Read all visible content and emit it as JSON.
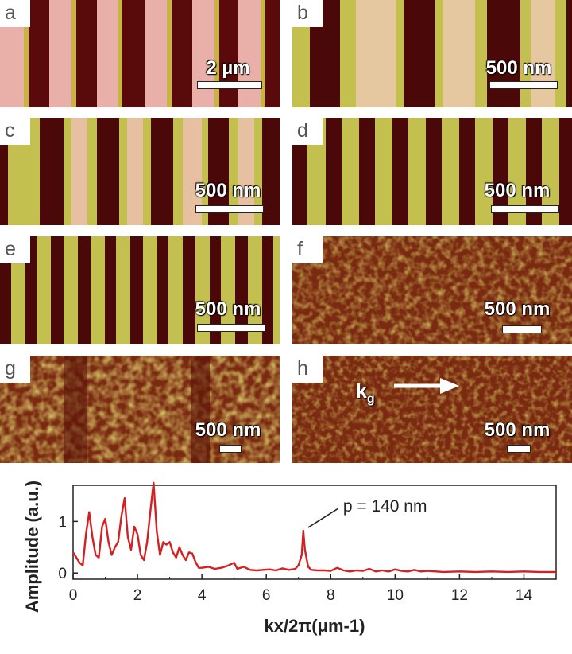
{
  "panels": [
    {
      "label": "a",
      "scale": "2 µm"
    },
    {
      "label": "b",
      "scale": "500 nm"
    },
    {
      "label": "c",
      "scale": "500 nm"
    },
    {
      "label": "d",
      "scale": "500 nm"
    },
    {
      "label": "e",
      "scale": "500 nm"
    },
    {
      "label": "f",
      "scale": "500 nm"
    },
    {
      "label": "g",
      "scale": "500 nm"
    },
    {
      "label": "h",
      "scale": "500 nm"
    }
  ],
  "arrow": {
    "label": "k",
    "sub": "g"
  },
  "chart_data": {
    "type": "line",
    "xlabel": "kx/2π(μm-1)",
    "ylabel": "Amplitude (a.u.)",
    "xlim": [
      0,
      15
    ],
    "ylim": [
      -0.12,
      1.7
    ],
    "xticks": [
      0,
      2,
      4,
      6,
      8,
      10,
      12,
      14
    ],
    "yticks": [
      0,
      1
    ],
    "annotation": {
      "text": "p = 140 nm",
      "x": 7.15,
      "y": 0.82
    },
    "series": [
      {
        "color": "#d42020",
        "x": [
          0,
          0.1,
          0.2,
          0.3,
          0.4,
          0.5,
          0.6,
          0.7,
          0.8,
          0.9,
          1.0,
          1.1,
          1.2,
          1.3,
          1.4,
          1.5,
          1.6,
          1.7,
          1.8,
          1.9,
          2.0,
          2.1,
          2.2,
          2.3,
          2.4,
          2.5,
          2.6,
          2.7,
          2.8,
          2.9,
          3.0,
          3.1,
          3.2,
          3.3,
          3.4,
          3.5,
          3.6,
          3.7,
          3.8,
          3.9,
          4.0,
          4.2,
          4.4,
          4.6,
          4.8,
          5.0,
          5.1,
          5.3,
          5.5,
          5.7,
          5.9,
          6.1,
          6.3,
          6.5,
          6.7,
          6.9,
          7.0,
          7.1,
          7.15,
          7.2,
          7.3,
          7.4,
          7.6,
          7.8,
          8.0,
          8.2,
          8.4,
          8.6,
          8.8,
          9.0,
          9.2,
          9.4,
          9.6,
          9.8,
          10.0,
          10.2,
          10.4,
          10.6,
          10.8,
          11.0,
          11.5,
          12.0,
          12.5,
          13.0,
          13.5,
          14.0,
          14.5,
          15.0
        ],
        "y": [
          0.4,
          0.3,
          0.2,
          0.15,
          0.75,
          1.18,
          0.7,
          0.35,
          0.3,
          0.9,
          1.05,
          0.6,
          0.35,
          0.5,
          0.6,
          1.1,
          1.45,
          0.7,
          0.45,
          0.9,
          0.75,
          0.35,
          0.25,
          0.6,
          1.2,
          1.75,
          0.8,
          0.35,
          0.6,
          0.55,
          0.6,
          0.4,
          0.3,
          0.5,
          0.35,
          0.25,
          0.4,
          0.38,
          0.22,
          0.1,
          0.1,
          0.12,
          0.08,
          0.1,
          0.14,
          0.2,
          0.08,
          0.12,
          0.06,
          0.05,
          0.06,
          0.07,
          0.05,
          0.09,
          0.06,
          0.08,
          0.15,
          0.35,
          0.82,
          0.45,
          0.12,
          0.06,
          0.05,
          0.05,
          0.04,
          0.1,
          0.05,
          0.03,
          0.05,
          0.04,
          0.08,
          0.03,
          0.05,
          0.03,
          0.07,
          0.04,
          0.03,
          0.06,
          0.03,
          0.04,
          0.02,
          0.03,
          0.02,
          0.03,
          0.02,
          0.03,
          0.02,
          0.02
        ]
      }
    ]
  }
}
